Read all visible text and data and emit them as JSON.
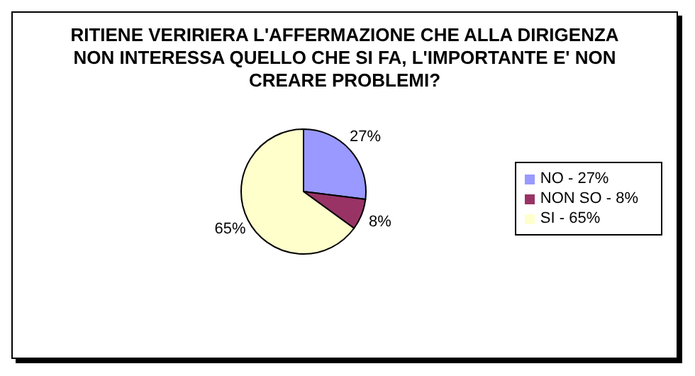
{
  "chart_data": {
    "type": "pie",
    "title": "RITIENE VERIRIERA L'AFFERMAZIONE CHE ALLA DIRIGENZA NON INTERESSA QUELLO CHE SI FA, L'IMPORTANTE E' NON CREARE PROBLEMI?",
    "categories": [
      "NO - 27%",
      "NON SO - 8%",
      "SI - 65%"
    ],
    "values": [
      27,
      8,
      65
    ],
    "colors": [
      "#9999ff",
      "#993366",
      "#ffffcc"
    ],
    "value_labels": [
      "27%",
      "8%",
      "65%"
    ],
    "legend": "right"
  }
}
